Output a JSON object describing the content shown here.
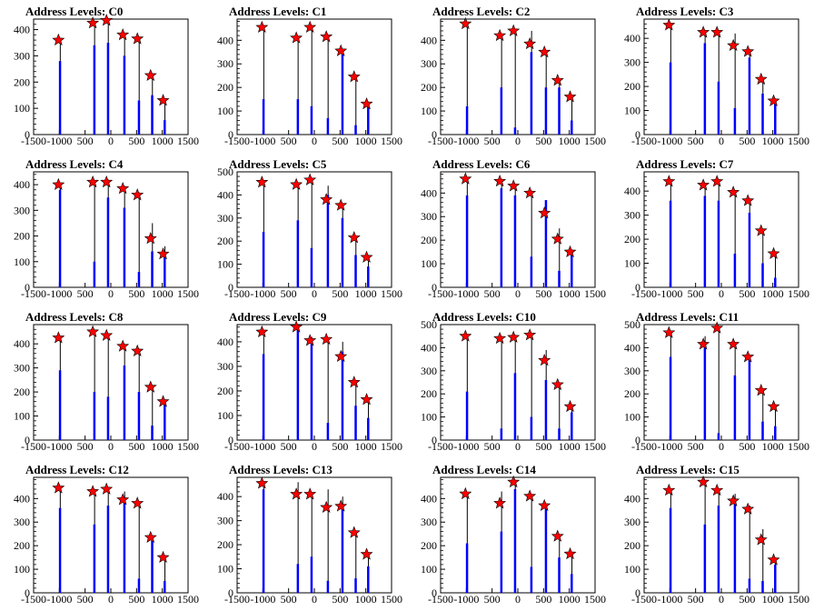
{
  "colors": {
    "histogram": "#0000ff",
    "peak_marker": "#ff0000",
    "frame": "#000000"
  },
  "chart_data": [
    {
      "type": "bar",
      "title": "Address Levels: C0",
      "ylim": [
        0,
        440
      ],
      "yticks": [
        0,
        100,
        200,
        300,
        400
      ],
      "xlim": [
        -1500,
        1500
      ],
      "xtick_labels": [
        "-1500",
        "-1000",
        "500",
        "0",
        "500",
        "1000",
        "1500"
      ],
      "x": [
        -1000,
        -333,
        -67,
        250,
        533,
        790,
        1033
      ],
      "bar_heights": [
        280,
        340,
        350,
        300,
        130,
        150,
        55
      ],
      "line_tops": [
        360,
        430,
        440,
        385,
        370,
        230,
        135
      ],
      "markers": [
        360,
        425,
        435,
        380,
        365,
        225,
        130
      ]
    },
    {
      "type": "bar",
      "title": "Address Levels: C1",
      "ylim": [
        0,
        490
      ],
      "yticks": [
        0,
        100,
        200,
        300,
        400
      ],
      "xlim": [
        -1500,
        1500
      ],
      "xtick_labels": [
        "-1500",
        "-1000",
        "500",
        "0",
        "500",
        "1000",
        "1500"
      ],
      "x": [
        -1000,
        -333,
        -67,
        250,
        533,
        790,
        1033
      ],
      "bar_heights": [
        150,
        150,
        120,
        70,
        340,
        40,
        130
      ],
      "line_tops": [
        460,
        415,
        460,
        420,
        360,
        245,
        140
      ],
      "markers": [
        455,
        410,
        455,
        415,
        355,
        245,
        130
      ]
    },
    {
      "type": "bar",
      "title": "Address Levels: C2",
      "ylim": [
        0,
        490
      ],
      "yticks": [
        0,
        100,
        200,
        300,
        400
      ],
      "xlim": [
        -1500,
        1500
      ],
      "xtick_labels": [
        "-1500",
        "-1000",
        "500",
        "0",
        "500",
        "1000",
        "1500"
      ],
      "x": [
        -1000,
        -333,
        -67,
        250,
        533,
        790,
        1033
      ],
      "bar_heights": [
        120,
        200,
        30,
        350,
        200,
        200,
        60
      ],
      "line_tops": [
        475,
        420,
        445,
        440,
        355,
        230,
        165
      ],
      "markers": [
        470,
        420,
        440,
        385,
        350,
        230,
        160
      ]
    },
    {
      "type": "bar",
      "title": "Address Levels: C3",
      "ylim": [
        0,
        480
      ],
      "yticks": [
        0,
        100,
        200,
        300,
        400
      ],
      "xlim": [
        -1500,
        1500
      ],
      "xtick_labels": [
        "-1500",
        "-1000",
        "500",
        "0",
        "500",
        "1000",
        "1500"
      ],
      "x": [
        -1000,
        -333,
        -67,
        250,
        533,
        790,
        1033
      ],
      "bar_heights": [
        300,
        380,
        220,
        110,
        320,
        170,
        130
      ],
      "line_tops": [
        460,
        430,
        430,
        420,
        350,
        230,
        150
      ],
      "markers": [
        455,
        425,
        425,
        370,
        345,
        230,
        140
      ]
    },
    {
      "type": "bar",
      "title": "Address Levels: C4",
      "ylim": [
        0,
        450
      ],
      "yticks": [
        0,
        100,
        200,
        300,
        400
      ],
      "xlim": [
        -1500,
        1500
      ],
      "xtick_labels": [
        "-1500",
        "-1000",
        "500",
        "0",
        "500",
        "1000",
        "1500"
      ],
      "x": [
        -1000,
        -333,
        -67,
        250,
        533,
        790,
        1033
      ],
      "bar_heights": [
        380,
        100,
        350,
        310,
        60,
        140,
        120
      ],
      "line_tops": [
        405,
        415,
        420,
        395,
        370,
        250,
        160
      ],
      "markers": [
        400,
        410,
        410,
        385,
        360,
        190,
        130
      ]
    },
    {
      "type": "bar",
      "title": "Address Levels: C5",
      "ylim": [
        0,
        500
      ],
      "yticks": [
        0,
        100,
        200,
        300,
        400,
        500
      ],
      "xlim": [
        -1500,
        1500
      ],
      "xtick_labels": [
        "-1500",
        "-1000",
        "500",
        "0",
        "500",
        "1000",
        "1500"
      ],
      "x": [
        -1000,
        -333,
        -67,
        250,
        533,
        790,
        1033
      ],
      "bar_heights": [
        240,
        290,
        170,
        400,
        300,
        140,
        90
      ],
      "line_tops": [
        460,
        450,
        470,
        440,
        360,
        220,
        140
      ],
      "markers": [
        455,
        445,
        465,
        380,
        355,
        215,
        130
      ]
    },
    {
      "type": "bar",
      "title": "Address Levels: C6",
      "ylim": [
        0,
        490
      ],
      "yticks": [
        0,
        100,
        200,
        300,
        400
      ],
      "xlim": [
        -1500,
        1500
      ],
      "xtick_labels": [
        "-1500",
        "-1000",
        "500",
        "0",
        "500",
        "1000",
        "1500"
      ],
      "x": [
        -1000,
        -333,
        -67,
        250,
        533,
        790,
        1033
      ],
      "bar_heights": [
        390,
        420,
        390,
        130,
        370,
        70,
        140
      ],
      "line_tops": [
        465,
        460,
        435,
        410,
        370,
        250,
        160
      ],
      "markers": [
        460,
        450,
        430,
        400,
        315,
        205,
        150
      ]
    },
    {
      "type": "bar",
      "title": "Address Levels: C7",
      "ylim": [
        0,
        480
      ],
      "yticks": [
        0,
        100,
        200,
        300,
        400
      ],
      "xlim": [
        -1500,
        1500
      ],
      "xtick_labels": [
        "-1500",
        "-1000",
        "500",
        "0",
        "500",
        "1000",
        "1500"
      ],
      "x": [
        -1000,
        -333,
        -67,
        250,
        533,
        790,
        1033
      ],
      "bar_heights": [
        360,
        380,
        360,
        140,
        310,
        100,
        40
      ],
      "line_tops": [
        445,
        430,
        445,
        400,
        360,
        235,
        145
      ],
      "markers": [
        440,
        425,
        440,
        395,
        360,
        235,
        140
      ]
    },
    {
      "type": "bar",
      "title": "Address Levels: C8",
      "ylim": [
        0,
        480
      ],
      "yticks": [
        0,
        100,
        200,
        300,
        400
      ],
      "xlim": [
        -1500,
        1500
      ],
      "xtick_labels": [
        "-1500",
        "-1000",
        "500",
        "0",
        "500",
        "1000",
        "1500"
      ],
      "x": [
        -1000,
        -333,
        -67,
        250,
        533,
        790,
        1033
      ],
      "bar_heights": [
        290,
        200,
        180,
        310,
        200,
        60,
        160
      ],
      "line_tops": [
        430,
        455,
        440,
        395,
        380,
        225,
        165
      ],
      "markers": [
        425,
        450,
        435,
        390,
        370,
        220,
        160
      ]
    },
    {
      "type": "bar",
      "title": "Address Levels: C9",
      "ylim": [
        0,
        470
      ],
      "yticks": [
        0,
        100,
        200,
        300,
        400
      ],
      "xlim": [
        -1500,
        1500
      ],
      "xtick_labels": [
        "-1500",
        "-1000",
        "500",
        "0",
        "500",
        "1000",
        "1500"
      ],
      "x": [
        -1000,
        -333,
        -67,
        250,
        533,
        790,
        1033
      ],
      "bar_heights": [
        350,
        460,
        410,
        70,
        360,
        140,
        90
      ],
      "line_tops": [
        440,
        465,
        420,
        415,
        400,
        240,
        170
      ],
      "markers": [
        440,
        460,
        405,
        410,
        340,
        235,
        165
      ]
    },
    {
      "type": "bar",
      "title": "Address Levels: C10",
      "ylim": [
        0,
        500
      ],
      "yticks": [
        0,
        100,
        200,
        300,
        400,
        500
      ],
      "xlim": [
        -1500,
        1500
      ],
      "xtick_labels": [
        "-1500",
        "-1000",
        "500",
        "0",
        "500",
        "1000",
        "1500"
      ],
      "x": [
        -1000,
        -333,
        -67,
        250,
        533,
        790,
        1033
      ],
      "bar_heights": [
        210,
        50,
        290,
        100,
        260,
        50,
        120
      ],
      "line_tops": [
        455,
        450,
        455,
        460,
        390,
        245,
        150
      ],
      "markers": [
        450,
        440,
        445,
        455,
        345,
        240,
        145
      ]
    },
    {
      "type": "bar",
      "title": "Address Levels: C11",
      "ylim": [
        0,
        500
      ],
      "yticks": [
        0,
        100,
        200,
        300,
        400,
        500
      ],
      "xlim": [
        -1500,
        1500
      ],
      "xtick_labels": [
        "-1500",
        "-1000",
        "500",
        "0",
        "500",
        "1000",
        "1500"
      ],
      "x": [
        -1000,
        -333,
        -67,
        250,
        533,
        790,
        1033
      ],
      "bar_heights": [
        360,
        410,
        30,
        280,
        350,
        80,
        60
      ],
      "line_tops": [
        470,
        450,
        490,
        420,
        370,
        220,
        150
      ],
      "markers": [
        465,
        415,
        485,
        415,
        360,
        215,
        145
      ]
    },
    {
      "type": "bar",
      "title": "Address Levels: C12",
      "ylim": [
        0,
        490
      ],
      "yticks": [
        0,
        100,
        200,
        300,
        400
      ],
      "xlim": [
        -1500,
        1500
      ],
      "xtick_labels": [
        "-1500",
        "-1000",
        "500",
        "0",
        "500",
        "1000",
        "1500"
      ],
      "x": [
        -1000,
        -333,
        -67,
        250,
        533,
        790,
        1033
      ],
      "bar_heights": [
        360,
        290,
        370,
        400,
        60,
        220,
        50
      ],
      "line_tops": [
        450,
        435,
        445,
        430,
        385,
        240,
        155
      ],
      "markers": [
        445,
        430,
        440,
        395,
        380,
        235,
        150
      ]
    },
    {
      "type": "bar",
      "title": "Address Levels: C13",
      "ylim": [
        0,
        480
      ],
      "yticks": [
        0,
        100,
        200,
        300,
        400
      ],
      "xlim": [
        -1500,
        1500
      ],
      "xtick_labels": [
        "-1500",
        "-1000",
        "500",
        "0",
        "500",
        "1000",
        "1500"
      ],
      "x": [
        -1000,
        -333,
        -67,
        250,
        533,
        790,
        1033
      ],
      "bar_heights": [
        430,
        120,
        150,
        50,
        360,
        60,
        110
      ],
      "line_tops": [
        460,
        460,
        420,
        430,
        400,
        255,
        165
      ],
      "markers": [
        455,
        410,
        410,
        355,
        360,
        250,
        160
      ]
    },
    {
      "type": "bar",
      "title": "Address Levels: C14",
      "ylim": [
        0,
        490
      ],
      "yticks": [
        0,
        100,
        200,
        300,
        400
      ],
      "xlim": [
        -1500,
        1500
      ],
      "xtick_labels": [
        "-1500",
        "-1000",
        "500",
        "0",
        "500",
        "1000",
        "1500"
      ],
      "x": [
        -1000,
        -333,
        -67,
        250,
        533,
        790,
        1033
      ],
      "bar_heights": [
        210,
        260,
        440,
        110,
        370,
        150,
        80
      ],
      "line_tops": [
        425,
        430,
        480,
        415,
        375,
        245,
        170
      ],
      "markers": [
        420,
        380,
        470,
        410,
        370,
        240,
        165
      ]
    },
    {
      "type": "bar",
      "title": "Address Levels: C15",
      "ylim": [
        0,
        490
      ],
      "yticks": [
        0,
        100,
        200,
        300,
        400
      ],
      "xlim": [
        -1500,
        1500
      ],
      "xtick_labels": [
        "-1500",
        "-1000",
        "500",
        "0",
        "500",
        "1000",
        "1500"
      ],
      "x": [
        -1000,
        -333,
        -67,
        250,
        533,
        790,
        1033
      ],
      "bar_heights": [
        360,
        290,
        370,
        390,
        60,
        50,
        120
      ],
      "line_tops": [
        440,
        470,
        440,
        420,
        370,
        270,
        150
      ],
      "markers": [
        435,
        470,
        435,
        390,
        355,
        225,
        140
      ]
    }
  ]
}
